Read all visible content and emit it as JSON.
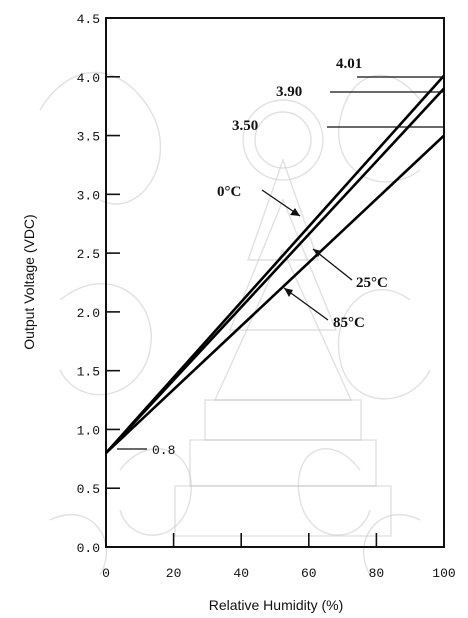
{
  "chart_data": {
    "type": "line",
    "xlabel": "Relative Humidity (%)",
    "ylabel": "Output Voltage (VDC)",
    "xlim": [
      0,
      100
    ],
    "ylim": [
      0.0,
      4.5
    ],
    "x_ticks": [
      "0",
      "20",
      "40",
      "60",
      "80",
      "100"
    ],
    "y_ticks": [
      "0.0",
      "0.5",
      "1.0",
      "1.5",
      "2.0",
      "2.5",
      "3.0",
      "3.5",
      "4.0",
      "4.5"
    ],
    "grid": false,
    "series": [
      {
        "name": "0°C",
        "x": [
          0,
          100
        ],
        "y": [
          0.8,
          4.01
        ],
        "end_label": "4.01"
      },
      {
        "name": "25°C",
        "x": [
          0,
          100
        ],
        "y": [
          0.8,
          3.9
        ],
        "end_label": "3.90"
      },
      {
        "name": "85°C",
        "x": [
          0,
          100
        ],
        "y": [
          0.8,
          3.5
        ],
        "end_label": "3.50"
      }
    ],
    "annotations": [
      {
        "text": "0.8",
        "x": 0,
        "y": 0.8
      }
    ]
  }
}
